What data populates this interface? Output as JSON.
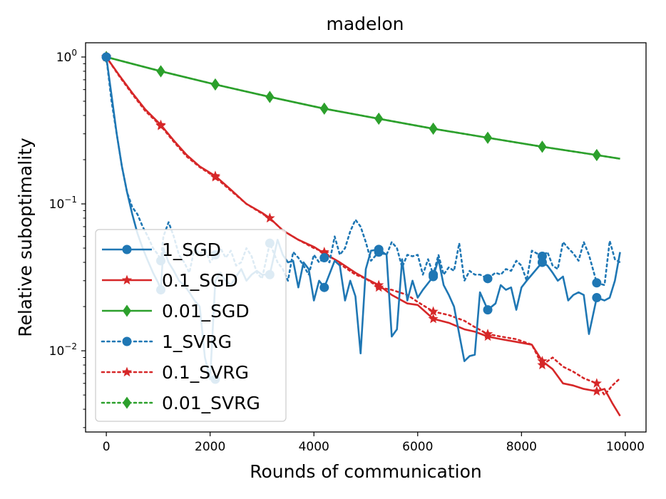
{
  "chart_data": {
    "type": "line",
    "title": "madelon",
    "xlabel": "Rounds of communication",
    "ylabel": "Relative suboptimality",
    "xlim": [
      -400,
      10400
    ],
    "ylim": [
      0.0028,
      1.25
    ],
    "yscale": "log",
    "xticks": [
      0,
      2000,
      4000,
      6000,
      8000,
      10000
    ],
    "xtick_labels": [
      "0",
      "2000",
      "4000",
      "6000",
      "8000",
      "10000"
    ],
    "yticks": [
      1,
      0.1,
      0.01
    ],
    "ytick_labels": [
      {
        "base": "10",
        "exp": "0"
      },
      {
        "base": "10",
        "exp": "−1"
      },
      {
        "base": "10",
        "exp": "−2"
      }
    ],
    "legend_position": "lower-left",
    "colors": {
      "blue": "#1f77b4",
      "red": "#d62728",
      "green": "#2ca02c"
    },
    "series": [
      {
        "name": "1_SGD",
        "color": "#1f77b4",
        "linestyle": "solid",
        "marker": "circle",
        "x": [
          0,
          100,
          200,
          300,
          400,
          500,
          600,
          700,
          800,
          900,
          1000,
          1050,
          1100,
          1200,
          1300,
          1400,
          1500,
          1600,
          1700,
          1800,
          1900,
          2000,
          2100,
          2200,
          2300,
          2400,
          2500,
          2600,
          2700,
          2800,
          2900,
          3000,
          3150,
          3300,
          3400,
          3500,
          3600,
          3700,
          3800,
          3900,
          4000,
          4100,
          4200,
          4400,
          4500,
          4600,
          4700,
          4800,
          4900,
          5000,
          5100,
          5250,
          5400,
          5500,
          5600,
          5700,
          5800,
          5900,
          6000,
          6100,
          6300,
          6400,
          6500,
          6600,
          6700,
          6800,
          6900,
          7000,
          7100,
          7200,
          7350,
          7500,
          7600,
          7700,
          7800,
          7900,
          8000,
          8100,
          8200,
          8400,
          8500,
          8600,
          8700,
          8800,
          8900,
          9000,
          9100,
          9200,
          9300,
          9450,
          9600,
          9700,
          9800,
          9900
        ],
        "y": [
          1.0,
          0.55,
          0.3,
          0.18,
          0.12,
          0.085,
          0.063,
          0.05,
          0.041,
          0.034,
          0.029,
          0.026,
          0.05,
          0.04,
          0.035,
          0.03,
          0.028,
          0.025,
          0.022,
          0.02,
          0.009,
          0.0064,
          0.03,
          0.034,
          0.03,
          0.028,
          0.032,
          0.036,
          0.03,
          0.033,
          0.035,
          0.033,
          0.033,
          0.057,
          0.045,
          0.04,
          0.041,
          0.027,
          0.04,
          0.036,
          0.022,
          0.03,
          0.027,
          0.041,
          0.038,
          0.022,
          0.03,
          0.0235,
          0.0096,
          0.036,
          0.048,
          0.049,
          0.045,
          0.0125,
          0.014,
          0.042,
          0.022,
          0.03,
          0.023,
          0.026,
          0.032,
          0.042,
          0.028,
          0.024,
          0.02,
          0.013,
          0.0085,
          0.0092,
          0.0094,
          0.025,
          0.019,
          0.021,
          0.028,
          0.026,
          0.027,
          0.019,
          0.027,
          0.03,
          0.033,
          0.04,
          0.038,
          0.034,
          0.03,
          0.032,
          0.022,
          0.024,
          0.025,
          0.024,
          0.013,
          0.023,
          0.022,
          0.023,
          0.03,
          0.047
        ],
        "marker_x": [
          0,
          1050,
          2100,
          3150,
          4200,
          5250,
          6300,
          7350,
          8400,
          9450
        ],
        "marker_y": [
          1.0,
          0.026,
          0.0064,
          0.033,
          0.027,
          0.049,
          0.032,
          0.019,
          0.04,
          0.023
        ]
      },
      {
        "name": "0.1_SGD",
        "color": "#d62728",
        "linestyle": "solid",
        "marker": "star",
        "x": [
          0,
          250,
          500,
          750,
          1050,
          1300,
          1550,
          1800,
          2100,
          2400,
          2700,
          3000,
          3150,
          3400,
          3700,
          4000,
          4200,
          4500,
          4800,
          5000,
          5250,
          5500,
          5800,
          6000,
          6300,
          6600,
          6900,
          7100,
          7350,
          7600,
          7900,
          8200,
          8400,
          8600,
          8800,
          9000,
          9200,
          9450,
          9600,
          9750,
          9900
        ],
        "y": [
          1.0,
          0.75,
          0.57,
          0.44,
          0.345,
          0.27,
          0.215,
          0.18,
          0.155,
          0.125,
          0.1,
          0.087,
          0.08,
          0.066,
          0.057,
          0.051,
          0.046,
          0.04,
          0.034,
          0.031,
          0.028,
          0.024,
          0.021,
          0.0205,
          0.0165,
          0.0155,
          0.014,
          0.0135,
          0.0125,
          0.012,
          0.0115,
          0.011,
          0.0085,
          0.0075,
          0.006,
          0.0058,
          0.0055,
          0.0053,
          0.0055,
          0.0044,
          0.0036
        ],
        "marker_x": [
          0,
          1050,
          2100,
          3150,
          4200,
          5250,
          6300,
          7350,
          8400,
          9450
        ],
        "marker_y": [
          1.0,
          0.345,
          0.155,
          0.08,
          0.046,
          0.028,
          0.0165,
          0.0125,
          0.0085,
          0.0053
        ]
      },
      {
        "name": "0.01_SGD",
        "color": "#2ca02c",
        "linestyle": "solid",
        "marker": "diamond",
        "x": [
          0,
          1050,
          2100,
          3150,
          4200,
          5250,
          6300,
          7350,
          8400,
          9450,
          9900
        ],
        "y": [
          1.0,
          0.8,
          0.65,
          0.535,
          0.445,
          0.38,
          0.325,
          0.282,
          0.245,
          0.215,
          0.203
        ],
        "marker_x": [
          0,
          1050,
          2100,
          3150,
          4200,
          5250,
          6300,
          7350,
          8400,
          9450
        ],
        "marker_y": [
          1.0,
          0.8,
          0.65,
          0.535,
          0.445,
          0.38,
          0.325,
          0.282,
          0.245,
          0.215
        ]
      },
      {
        "name": "1_SVRG",
        "color": "#1f77b4",
        "linestyle": "dotted",
        "marker": "circle",
        "x": [
          0,
          100,
          200,
          300,
          400,
          500,
          600,
          700,
          800,
          900,
          1000,
          1050,
          1100,
          1200,
          1300,
          1400,
          1500,
          1600,
          1700,
          1800,
          1900,
          2000,
          2100,
          2200,
          2300,
          2400,
          2500,
          2600,
          2700,
          2800,
          2900,
          3000,
          3150,
          3300,
          3400,
          3500,
          3600,
          3700,
          3800,
          3900,
          4000,
          4100,
          4200,
          4300,
          4400,
          4500,
          4600,
          4700,
          4800,
          4900,
          5000,
          5100,
          5250,
          5400,
          5500,
          5600,
          5700,
          5800,
          5900,
          6000,
          6100,
          6200,
          6300,
          6400,
          6500,
          6600,
          6700,
          6800,
          6900,
          7000,
          7100,
          7200,
          7350,
          7500,
          7600,
          7700,
          7800,
          7900,
          8000,
          8100,
          8200,
          8400,
          8500,
          8600,
          8700,
          8800,
          8900,
          9000,
          9100,
          9200,
          9300,
          9450,
          9600,
          9700,
          9800,
          9900
        ],
        "y": [
          1.0,
          0.5,
          0.3,
          0.18,
          0.12,
          0.095,
          0.085,
          0.07,
          0.06,
          0.05,
          0.045,
          0.041,
          0.06,
          0.075,
          0.06,
          0.045,
          0.04,
          0.034,
          0.05,
          0.045,
          0.05,
          0.04,
          0.045,
          0.05,
          0.043,
          0.048,
          0.038,
          0.04,
          0.05,
          0.044,
          0.034,
          0.031,
          0.054,
          0.04,
          0.036,
          0.03,
          0.047,
          0.043,
          0.038,
          0.033,
          0.045,
          0.04,
          0.043,
          0.04,
          0.06,
          0.045,
          0.05,
          0.065,
          0.078,
          0.07,
          0.055,
          0.041,
          0.047,
          0.045,
          0.055,
          0.05,
          0.037,
          0.045,
          0.044,
          0.045,
          0.033,
          0.042,
          0.033,
          0.045,
          0.033,
          0.037,
          0.035,
          0.054,
          0.03,
          0.035,
          0.033,
          0.033,
          0.031,
          0.034,
          0.033,
          0.036,
          0.035,
          0.041,
          0.038,
          0.03,
          0.048,
          0.044,
          0.047,
          0.038,
          0.036,
          0.055,
          0.05,
          0.046,
          0.041,
          0.055,
          0.045,
          0.029,
          0.028,
          0.056,
          0.042,
          0.04
        ],
        "marker_x": [
          0,
          1050,
          2100,
          3150,
          4200,
          5250,
          6300,
          7350,
          8400,
          9450
        ],
        "marker_y": [
          1.0,
          0.041,
          0.045,
          0.054,
          0.043,
          0.047,
          0.033,
          0.031,
          0.044,
          0.029
        ]
      },
      {
        "name": "0.1_SVRG",
        "color": "#d62728",
        "linestyle": "dotted",
        "marker": "star",
        "x": [
          0,
          250,
          500,
          750,
          1050,
          1300,
          1550,
          1800,
          2100,
          2400,
          2700,
          3000,
          3150,
          3400,
          3700,
          4000,
          4200,
          4500,
          4800,
          5000,
          5250,
          5500,
          5800,
          6000,
          6300,
          6600,
          6900,
          7100,
          7350,
          7600,
          7900,
          8200,
          8400,
          8600,
          8800,
          9000,
          9200,
          9450,
          9600,
          9750,
          9900
        ],
        "y": [
          1.0,
          0.74,
          0.56,
          0.43,
          0.34,
          0.265,
          0.21,
          0.178,
          0.152,
          0.123,
          0.1,
          0.086,
          0.08,
          0.066,
          0.057,
          0.05,
          0.047,
          0.039,
          0.033,
          0.031,
          0.027,
          0.026,
          0.024,
          0.0215,
          0.0185,
          0.0175,
          0.016,
          0.0145,
          0.013,
          0.0125,
          0.012,
          0.011,
          0.008,
          0.009,
          0.0078,
          0.0072,
          0.0065,
          0.006,
          0.005,
          0.0058,
          0.0065
        ],
        "marker_x": [
          0,
          1050,
          2100,
          3150,
          4200,
          5250,
          6300,
          7350,
          8400,
          9450
        ],
        "marker_y": [
          1.0,
          0.34,
          0.152,
          0.08,
          0.047,
          0.027,
          0.0185,
          0.013,
          0.008,
          0.006
        ]
      },
      {
        "name": "0.01_SVRG",
        "color": "#2ca02c",
        "linestyle": "dotted",
        "marker": "diamond",
        "x": [
          0,
          1050,
          2100,
          3150,
          4200,
          5250,
          6300,
          7350,
          8400,
          9450,
          9900
        ],
        "y": [
          1.0,
          0.8,
          0.65,
          0.535,
          0.445,
          0.38,
          0.325,
          0.282,
          0.245,
          0.215,
          0.203
        ],
        "marker_x": [
          0,
          1050,
          2100,
          3150,
          4200,
          5250,
          6300,
          7350,
          8400,
          9450
        ],
        "marker_y": [
          1.0,
          0.8,
          0.65,
          0.535,
          0.445,
          0.38,
          0.325,
          0.282,
          0.245,
          0.215
        ]
      }
    ]
  }
}
